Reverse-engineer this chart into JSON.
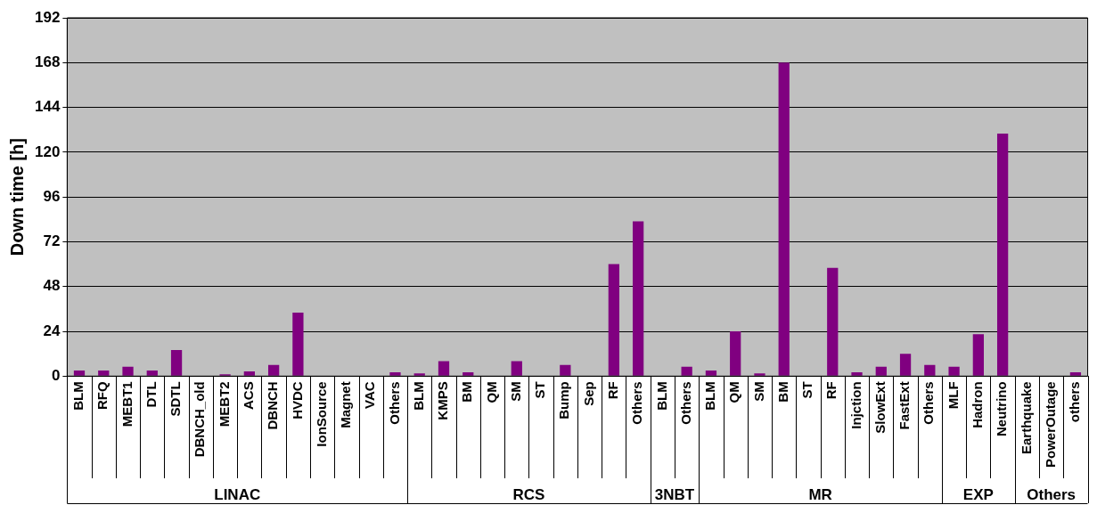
{
  "chart_data": {
    "type": "bar",
    "ylabel": "Down time [h]",
    "categories": [
      "BLM",
      "RFQ",
      "MEBT1",
      "DTL",
      "SDTL",
      "DBNCH_old",
      "MEBT2",
      "ACS",
      "DBNCH",
      "HVDC",
      "IonSource",
      "Magnet",
      "VAC",
      "Others",
      "BLM",
      "KMPS",
      "BM",
      "QM",
      "SM",
      "ST",
      "Bump",
      "Sep",
      "RF",
      "Others",
      "BLM",
      "Others",
      "BLM",
      "QM",
      "SM",
      "BM",
      "ST",
      "RF",
      "Injction",
      "SlowExt",
      "FastExt",
      "Others",
      "MLF",
      "Hadron",
      "Neutrino",
      "Earthquake",
      "PowerOutage",
      "others"
    ],
    "values": [
      3,
      3,
      5,
      3,
      14,
      0,
      1,
      2.5,
      6,
      34,
      0,
      0,
      0,
      2,
      1.5,
      8,
      2,
      0,
      8,
      0,
      6,
      0,
      60,
      83,
      0,
      5,
      3,
      24,
      1.5,
      168,
      0,
      58,
      2,
      5,
      12,
      6,
      5,
      22.5,
      130,
      0,
      0,
      2
    ],
    "color": "#800080",
    "ylim": [
      0,
      192
    ],
    "yticks": [
      0,
      24,
      48,
      72,
      96,
      120,
      144,
      168,
      192
    ],
    "grid": "y",
    "annotations": [
      "LINAC",
      "RCS",
      "3NBT",
      "MR",
      "EXP",
      "Others"
    ]
  }
}
